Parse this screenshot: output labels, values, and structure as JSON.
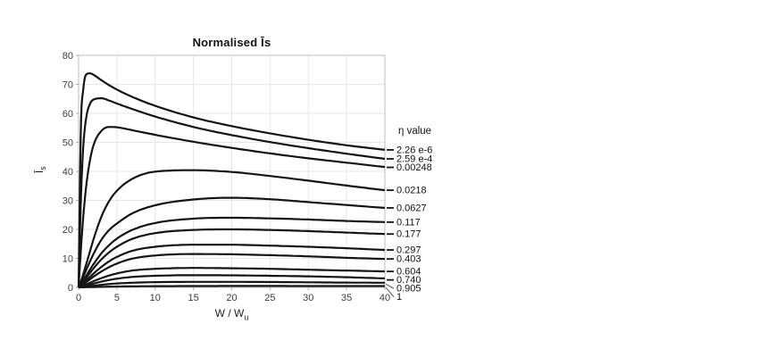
{
  "page": {
    "background": "#ffffff"
  },
  "chart_data": {
    "type": "line",
    "title": "Normalised Īs",
    "xlabel": {
      "text": "W / W",
      "sub": "u"
    },
    "ylabel": {
      "text": "Ī",
      "sub": "s"
    },
    "legend_title": "η value",
    "xlim": [
      0,
      40
    ],
    "ylim": [
      0,
      80
    ],
    "xticks": [
      0,
      5,
      10,
      15,
      20,
      25,
      30,
      35,
      40
    ],
    "yticks": [
      0,
      10,
      20,
      30,
      40,
      50,
      60,
      70,
      80
    ],
    "grid": true,
    "legend_position": "right-of-curve-ends",
    "line_color": "#141414",
    "grid_color": "#e6e6e6",
    "frame_color": "#c9c9c9",
    "tick_color": "#b0b0b0",
    "tick_label_color": "#3c3c3c",
    "x_samples": [
      0,
      0.3,
      0.6,
      1,
      1.5,
      2,
      3,
      4,
      5,
      7,
      10,
      15,
      20,
      25,
      30,
      35,
      40
    ],
    "series": [
      {
        "name": "2.26 e-6",
        "values": [
          0,
          55,
          68,
          73.4,
          73.8,
          73.2,
          71.4,
          69.7,
          68.2,
          65.7,
          62.6,
          58.6,
          55.6,
          53.1,
          50.9,
          49.0,
          47.4
        ]
      },
      {
        "name": "2.59 e-4",
        "values": [
          0,
          30,
          48,
          58.5,
          63.3,
          64.8,
          65.2,
          64.4,
          63.4,
          61.5,
          58.9,
          55.3,
          52.5,
          50.1,
          48.0,
          46.1,
          44.3
        ]
      },
      {
        "name": "0.00248",
        "values": [
          0,
          13,
          24,
          35,
          44,
          49.4,
          54,
          55.3,
          55.2,
          54.2,
          52.6,
          50.2,
          48.1,
          46.2,
          44.5,
          43.0,
          41.5
        ]
      },
      {
        "name": "0.0218",
        "values": [
          0,
          2,
          4.5,
          8,
          12.5,
          17,
          24.5,
          29.8,
          33.3,
          37.4,
          39.9,
          40.4,
          39.8,
          38.4,
          36.8,
          35.1,
          33.5
        ]
      },
      {
        "name": "0.0627",
        "values": [
          0,
          1.5,
          3.5,
          6,
          9,
          11.8,
          16.5,
          19.8,
          22,
          25.5,
          28.3,
          30.3,
          30.9,
          30.4,
          29.4,
          28.4,
          27.4
        ]
      },
      {
        "name": "0.117",
        "values": [
          0,
          1,
          2.3,
          4,
          6.2,
          8.2,
          11.8,
          14.6,
          16.8,
          19.8,
          22.2,
          23.7,
          24,
          23.8,
          23.4,
          22.9,
          22.5
        ]
      },
      {
        "name": "0.177",
        "values": [
          0,
          0.8,
          1.8,
          3.2,
          5,
          6.7,
          9.7,
          12.1,
          14,
          16.7,
          18.7,
          19.8,
          20,
          19.8,
          19.4,
          18.9,
          18.4
        ]
      },
      {
        "name": "0.297",
        "values": [
          0,
          0.6,
          1.3,
          2.3,
          3.6,
          4.9,
          7.1,
          9,
          10.5,
          12.6,
          14,
          14.7,
          14.7,
          14.4,
          14,
          13.5,
          12.9
        ]
      },
      {
        "name": "0.403",
        "values": [
          0,
          0.4,
          1,
          1.8,
          2.8,
          3.8,
          5.5,
          7,
          8.2,
          9.9,
          11,
          11.5,
          11.4,
          11.1,
          10.7,
          10.2,
          9.8
        ]
      },
      {
        "name": "0.604",
        "values": [
          0,
          0.25,
          0.55,
          1,
          1.6,
          2.2,
          3.2,
          4.1,
          4.8,
          5.8,
          6.4,
          6.7,
          6.6,
          6.4,
          6.1,
          5.8,
          5.5
        ]
      },
      {
        "name": "0.740",
        "values": [
          0,
          0.15,
          0.35,
          0.6,
          1,
          1.35,
          2,
          2.55,
          3,
          3.6,
          4,
          4.2,
          4.15,
          4,
          3.8,
          3.5,
          3.1
        ]
      },
      {
        "name": "0.905",
        "values": [
          0,
          0.07,
          0.15,
          0.28,
          0.45,
          0.6,
          0.9,
          1.15,
          1.35,
          1.6,
          1.8,
          1.9,
          1.9,
          1.85,
          1.75,
          1.65,
          1.6
        ]
      },
      {
        "name": "1",
        "values": [
          0,
          0.02,
          0.04,
          0.07,
          0.1,
          0.13,
          0.2,
          0.25,
          0.3,
          0.36,
          0.42,
          0.46,
          0.48,
          0.48,
          0.47,
          0.46,
          0.45
        ]
      }
    ]
  }
}
